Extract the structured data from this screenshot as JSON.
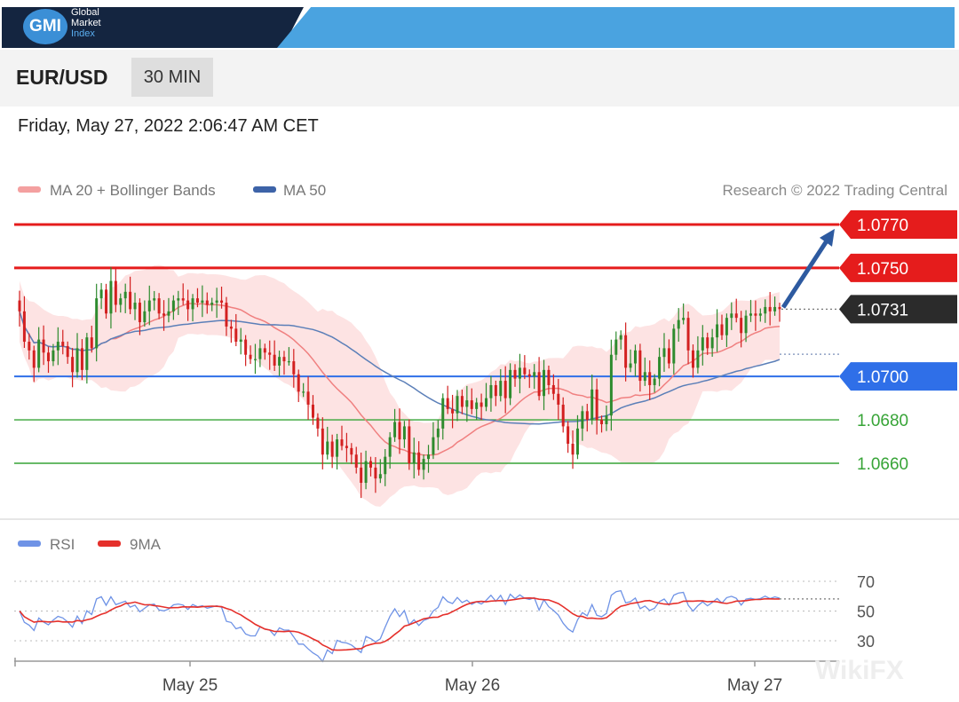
{
  "header": {
    "logo_mark": "GMI",
    "logo_lines": [
      "Global",
      "Market",
      "Index"
    ]
  },
  "instrument": {
    "pair": "EUR/USD",
    "timeframe": "30 MIN"
  },
  "timestamp": "Friday, May 27, 2022 2:06:47 AM CET",
  "legend": {
    "ma20": "MA 20 + Bollinger Bands",
    "ma50": "MA 50",
    "credit": "Research © 2022 Trading Central",
    "rsi": "RSI",
    "rsi_ma": "9MA"
  },
  "watermark": "WikiFX",
  "colors": {
    "bull": "#2e8b2e",
    "bear": "#d32020",
    "band_fill": "#fddede",
    "ma20": "#f08080",
    "ma50": "#5b7fb8",
    "resistance": "#e51c1c",
    "current": "#2b2b2b",
    "pivot": "#2f6fe8",
    "support": "#37a437",
    "arrow": "#2d5aa0",
    "rsi": "#6f93e6",
    "rsi_ma": "#e5302b"
  },
  "chart_data": [
    {
      "type": "candlestick",
      "title": "EUR/USD 30 MIN",
      "x_ticks": [
        "May 25",
        "May 26",
        "May 27"
      ],
      "ylim": [
        1.0645,
        1.078
      ],
      "levels": [
        {
          "label": "1.0770",
          "value": 1.077,
          "kind": "resistance"
        },
        {
          "label": "1.0750",
          "value": 1.075,
          "kind": "resistance"
        },
        {
          "label": "1.0731",
          "value": 1.0731,
          "kind": "current"
        },
        {
          "label": "1.0700",
          "value": 1.07,
          "kind": "pivot"
        },
        {
          "label": "1.0680",
          "value": 1.068,
          "kind": "support"
        },
        {
          "label": "1.0660",
          "value": 1.066,
          "kind": "support"
        }
      ],
      "target_arrow": {
        "from": 1.0731,
        "to": 1.0768
      },
      "close": [
        1.073,
        1.0716,
        1.0712,
        1.0704,
        1.0717,
        1.0711,
        1.0707,
        1.0712,
        1.0716,
        1.0714,
        1.0709,
        1.0702,
        1.0713,
        1.0703,
        1.0718,
        1.0713,
        1.0736,
        1.074,
        1.0729,
        1.0744,
        1.0733,
        1.0736,
        1.0739,
        1.0731,
        1.0734,
        1.0725,
        1.073,
        1.0735,
        1.0736,
        1.0729,
        1.0728,
        1.073,
        1.0735,
        1.0736,
        1.0735,
        1.0731,
        1.0736,
        1.0734,
        1.0735,
        1.0733,
        1.0734,
        1.0735,
        1.0734,
        1.0723,
        1.0722,
        1.0716,
        1.0717,
        1.071,
        1.0708,
        1.0708,
        1.0713,
        1.0711,
        1.071,
        1.0705,
        1.0709,
        1.0707,
        1.0707,
        1.0701,
        1.0693,
        1.0693,
        1.0687,
        1.0681,
        1.0676,
        1.0664,
        1.067,
        1.0663,
        1.0671,
        1.0668,
        1.0667,
        1.0664,
        1.0658,
        1.0651,
        1.0661,
        1.0658,
        1.0653,
        1.0655,
        1.0663,
        1.0672,
        1.0679,
        1.0671,
        1.0677,
        1.066,
        1.0665,
        1.0657,
        1.0662,
        1.0664,
        1.0672,
        1.0676,
        1.069,
        1.0685,
        1.0683,
        1.0691,
        1.0686,
        1.0689,
        1.0685,
        1.0688,
        1.0686,
        1.069,
        1.0696,
        1.0691,
        1.0698,
        1.069,
        1.0703,
        1.0699,
        1.0704,
        1.0701,
        1.07,
        1.0702,
        1.0691,
        1.0703,
        1.0696,
        1.0692,
        1.0687,
        1.0677,
        1.0669,
        1.0664,
        1.0676,
        1.0684,
        1.068,
        1.0694,
        1.068,
        1.0678,
        1.0682,
        1.071,
        1.0717,
        1.0719,
        1.0704,
        1.0706,
        1.0712,
        1.0698,
        1.0702,
        1.0696,
        1.0699,
        1.0709,
        1.0713,
        1.0706,
        1.0722,
        1.0726,
        1.0727,
        1.0712,
        1.0704,
        1.0712,
        1.0718,
        1.0713,
        1.0718,
        1.0724,
        1.0719,
        1.0727,
        1.0729,
        1.0727,
        1.072,
        1.0728,
        1.0729,
        1.0728,
        1.0729,
        1.0732,
        1.073,
        1.0732,
        1.0731
      ]
    },
    {
      "type": "line",
      "title": "RSI",
      "series": [
        {
          "name": "RSI"
        },
        {
          "name": "9MA"
        }
      ],
      "y_ticks": [
        70,
        50,
        30
      ],
      "ylim": [
        20,
        80
      ]
    }
  ]
}
